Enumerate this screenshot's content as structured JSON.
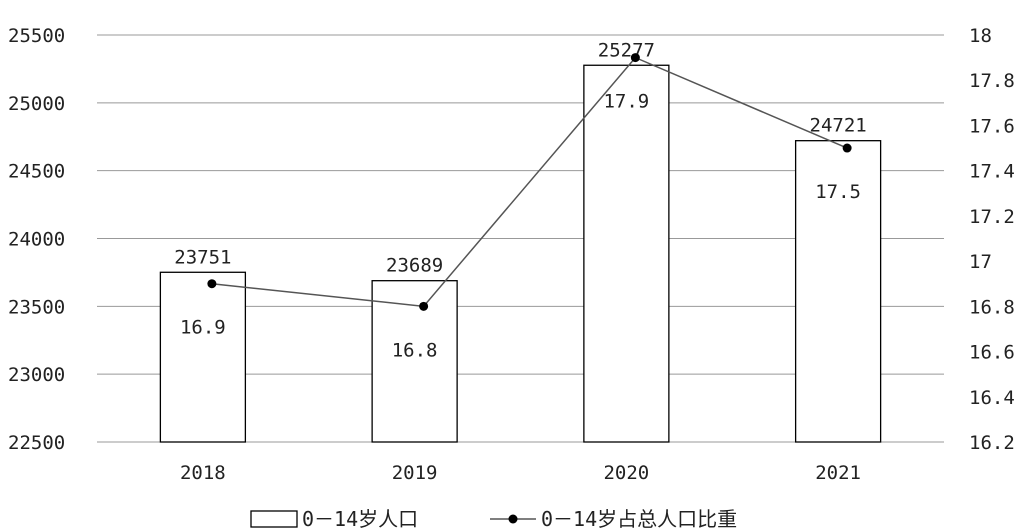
{
  "chart_data": {
    "type": "bar",
    "categories": [
      "2018",
      "2019",
      "2020",
      "2021"
    ],
    "series": [
      {
        "name": "0－14岁人口",
        "type": "bar",
        "axis": "left",
        "values": [
          23751,
          23689,
          25277,
          24721
        ],
        "labels": [
          "23751",
          "23689",
          "25277",
          "24721"
        ]
      },
      {
        "name": "0－14岁占总人口比重",
        "type": "line",
        "axis": "right",
        "values": [
          16.9,
          16.8,
          17.9,
          17.5
        ],
        "labels": [
          "16.9",
          "16.8",
          "17.9",
          "17.5"
        ]
      }
    ],
    "y_left": {
      "range": [
        22500,
        25500
      ],
      "ticks": [
        "22500",
        "23000",
        "23500",
        "24000",
        "24500",
        "25000",
        "25500"
      ]
    },
    "y_right": {
      "range": [
        16.2,
        18
      ],
      "ticks": [
        "16.2",
        "16.4",
        "16.6",
        "16.8",
        "17",
        "17.2",
        "17.4",
        "17.6",
        "17.8",
        "18"
      ]
    },
    "grid": true,
    "legend": "bottom",
    "colors": {
      "bar_fill": "#ffffff",
      "bar_stroke": "#000000",
      "line": "#555555",
      "marker": "#000000",
      "grid": "#999999"
    }
  }
}
